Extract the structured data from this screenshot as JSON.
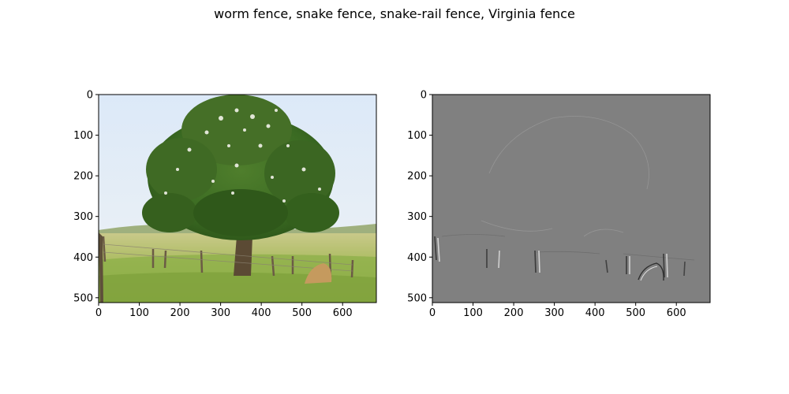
{
  "figure": {
    "title": "worm fence, snake fence, snake-rail fence, Virginia fence"
  },
  "chart_data": [
    {
      "type": "image",
      "description_kind": "photograph",
      "xlim": [
        0,
        683
      ],
      "ylim": [
        512,
        0
      ],
      "x_ticks": [
        0,
        100,
        200,
        300,
        400,
        500,
        600
      ],
      "y_ticks": [
        0,
        100,
        200,
        300,
        400,
        500
      ],
      "grid": false
    },
    {
      "type": "image",
      "description_kind": "edge-filtered grayscale map",
      "xlim": [
        0,
        683
      ],
      "ylim": [
        512,
        0
      ],
      "x_ticks": [
        0,
        100,
        200,
        300,
        400,
        500,
        600
      ],
      "y_ticks": [
        0,
        100,
        200,
        300,
        400,
        500
      ],
      "grid": false
    }
  ]
}
